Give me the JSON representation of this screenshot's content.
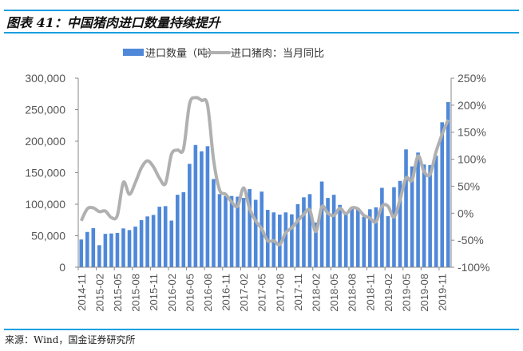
{
  "title": "图表 41：中国猪肉进口数量持续提升",
  "source": "来源：Wind，国金证券研究所",
  "colors": {
    "bar": "#4f88d8",
    "line": "#b0b0b0",
    "rule": "#1aa0e0",
    "axis": "#777777"
  },
  "chart_data": {
    "type": "bar+line",
    "legend": [
      "进口数量（吨）",
      "进口猪肉：当月同比"
    ],
    "legend_position": "top",
    "x_ticks": [
      "2014-11",
      "2015-02",
      "2015-05",
      "2015-08",
      "2015-11",
      "2016-02",
      "2016-05",
      "2016-08",
      "2016-11",
      "2017-02",
      "2017-05",
      "2017-08",
      "2017-11",
      "2018-02",
      "2018-05",
      "2018-08",
      "2018-11",
      "2019-02",
      "2019-05",
      "2019-08",
      "2019-11"
    ],
    "x_start": "2014-11",
    "x_end": "2019-12",
    "y_left": {
      "range": [
        0,
        300000
      ],
      "ticks": [
        "0",
        "50,000",
        "100,000",
        "150,000",
        "200,000",
        "250,000",
        "300,000"
      ]
    },
    "y_right": {
      "range": [
        -100,
        250
      ],
      "ticks": [
        "-100%",
        "-50%",
        "0%",
        "50%",
        "100%",
        "150%",
        "200%",
        "250%"
      ]
    },
    "series": [
      {
        "name": "进口数量（吨）",
        "type": "bar",
        "axis": "left",
        "values": [
          44000,
          56000,
          62000,
          35000,
          53000,
          53600,
          54400,
          61600,
          59000,
          64500,
          74700,
          80600,
          83000,
          96000,
          97000,
          74000,
          115000,
          119000,
          164000,
          194000,
          184000,
          192000,
          140000,
          116000,
          113000,
          113000,
          112000,
          110000,
          124000,
          107000,
          120000,
          91000,
          87000,
          83500,
          87000,
          84000,
          100000,
          111000,
          116000,
          71000,
          136000,
          110000,
          115000,
          99000,
          84000,
          93000,
          91000,
          80000,
          92000,
          95000,
          126000,
          81000,
          127000,
          137000,
          187000,
          160000,
          182000,
          163000,
          162000,
          177000,
          230000,
          262000
        ]
      },
      {
        "name": "进口猪肉：当月同比",
        "type": "line",
        "axis": "right",
        "unit": "%",
        "values": [
          -14,
          8,
          10,
          3,
          4,
          -8,
          -4,
          57,
          35,
          57,
          84,
          97,
          86,
          65,
          55,
          109,
          117,
          119,
          202,
          214,
          209,
          200,
          99,
          43,
          35,
          21,
          13,
          47,
          8,
          -14,
          -29,
          -51,
          -51,
          -58,
          -36,
          -27,
          -14,
          -2,
          6,
          -34,
          12,
          0,
          -4,
          9,
          -1,
          10,
          8,
          -4,
          -9,
          -16,
          13,
          13,
          -7,
          25,
          65,
          61,
          106,
          77,
          72,
          114,
          146,
          173
        ]
      }
    ]
  }
}
